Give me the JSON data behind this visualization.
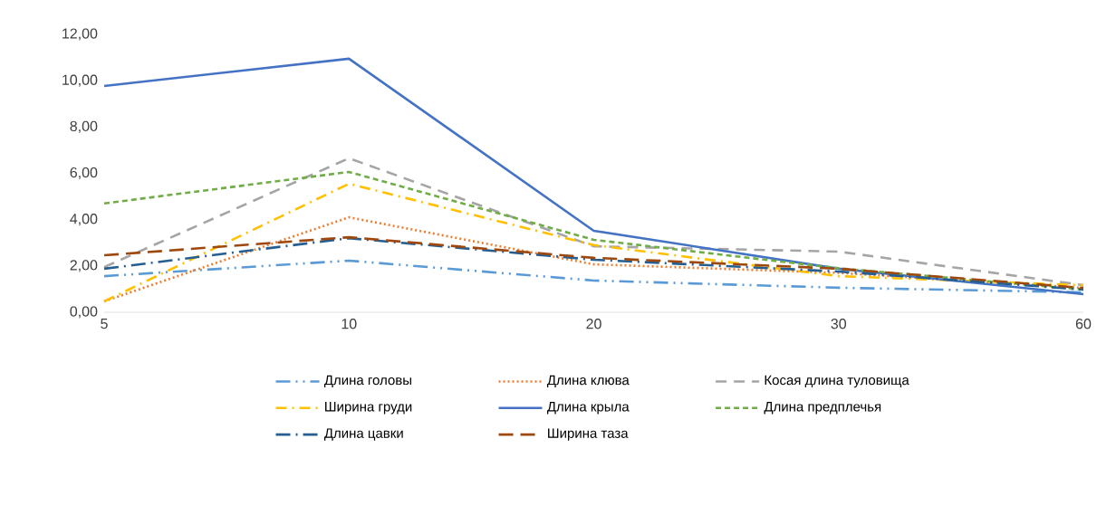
{
  "chart_data": {
    "type": "line",
    "categories": [
      "5",
      "10",
      "20",
      "30",
      "60"
    ],
    "ylim": [
      0,
      12
    ],
    "yticks": [
      {
        "value": 0,
        "label": "0,00"
      },
      {
        "value": 2,
        "label": "2,00"
      },
      {
        "value": 4,
        "label": "4,00"
      },
      {
        "value": 6,
        "label": "6,00"
      },
      {
        "value": 8,
        "label": "8,00"
      },
      {
        "value": 10,
        "label": "10,00"
      },
      {
        "value": 12,
        "label": "12,00"
      }
    ],
    "legend": "bottom",
    "series": [
      {
        "name": "Длина головы",
        "color": "#5b9bd5",
        "line_style": "dashdotdot",
        "values": [
          1.56,
          2.23,
          1.37,
          1.06,
          0.86
        ]
      },
      {
        "name": "Длина клюва",
        "color": "#ed7d31",
        "line_style": "dotted",
        "values": [
          0.47,
          4.1,
          2.07,
          1.7,
          1.05
        ]
      },
      {
        "name": "Косая длина туловища",
        "color": "#a5a5a5",
        "line_style": "dashed",
        "values": [
          1.95,
          6.65,
          2.85,
          2.62,
          1.17
        ]
      },
      {
        "name": "Ширина груди",
        "color": "#ffc000",
        "line_style": "dashdot",
        "values": [
          0.47,
          5.55,
          2.9,
          1.56,
          1.17
        ]
      },
      {
        "name": "Длина крыла",
        "color": "#4472c4",
        "line_style": "solid",
        "values": [
          9.77,
          10.95,
          3.52,
          1.88,
          0.78
        ]
      },
      {
        "name": "Длина предплечья",
        "color": "#70ad47",
        "line_style": "shortdashed",
        "values": [
          4.7,
          6.06,
          3.13,
          1.9,
          0.98
        ]
      },
      {
        "name": "Длина цавки",
        "color": "#255e91",
        "line_style": "longdashdot",
        "values": [
          1.88,
          3.2,
          2.27,
          1.76,
          0.98
        ]
      },
      {
        "name": "Ширина таза",
        "color": "#9e480e",
        "line_style": "longdashed",
        "values": [
          2.46,
          3.24,
          2.35,
          1.88,
          1.05
        ]
      }
    ]
  }
}
